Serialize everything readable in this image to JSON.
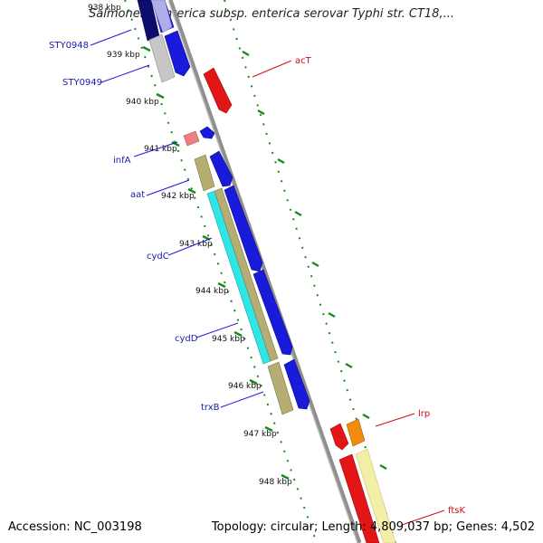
{
  "title": "Salmonella enterica subsp. enterica serovar Typhi str. CT18,...",
  "footer": {
    "accession": "Accession: NC_003198",
    "topology": "Topology: circular; Length: 4,809,037 bp; Genes: 4,502"
  },
  "scale_labels": [
    "938 kbp",
    "939 kbp",
    "940 kbp",
    "941 kbp",
    "942 kbp",
    "943 kbp",
    "944 kbp",
    "945 kbp",
    "946 kbp",
    "947 kbp",
    "948 kbp"
  ],
  "gene_labels_left": [
    "STY0948",
    "STY0949",
    "infA",
    "aat",
    "cydC",
    "cydD",
    "trxB"
  ],
  "gene_labels_right": [
    "acT",
    "lrp",
    "ftsK"
  ],
  "colors": {
    "forward": "#1a1adb",
    "reverse": "#e21616",
    "olive": "#b5ad72",
    "cyan": "#2fe6e6",
    "orange": "#f28c0f",
    "pink": "#ee7f82",
    "navy": "#0d0d70",
    "lavender": "#c8c8ee",
    "grey": "#c7c7c7",
    "pale_yellow": "#f4efa6",
    "backbone": "#8a8a8a",
    "ticks": "#1a8a1a"
  }
}
